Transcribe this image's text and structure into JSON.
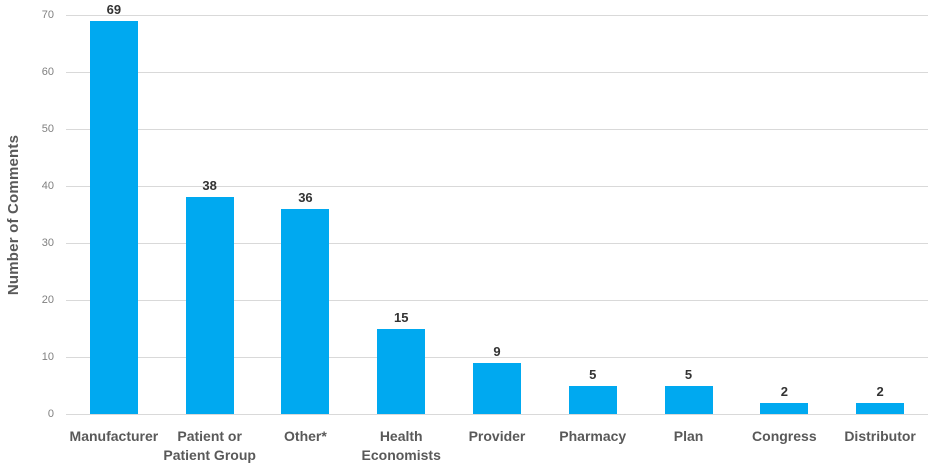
{
  "chart_data": {
    "type": "bar",
    "title": "",
    "xlabel": "",
    "ylabel": "Number of Comments",
    "categories": [
      "Manufacturer",
      "Patient or\nPatient Group",
      "Other*",
      "Health\nEconomists",
      "Provider",
      "Pharmacy",
      "Plan",
      "Congress",
      "Distributor"
    ],
    "values": [
      69,
      38,
      36,
      15,
      9,
      5,
      5,
      2,
      2
    ],
    "data_labels": [
      "69",
      "38",
      "36",
      "15",
      "9",
      "5",
      "5",
      "2",
      "2"
    ],
    "ylim": [
      0,
      70
    ],
    "ytick_step": 10,
    "ytick_labels": [
      "0",
      "10",
      "20",
      "30",
      "40",
      "50",
      "60",
      "70"
    ],
    "grid": true,
    "legend": false,
    "colors": {
      "bar": "#00A9F0",
      "gridline": "#D9D9D9",
      "tick_label": "#808080",
      "category_label": "#595959",
      "data_label": "#333333",
      "axis_title": "#595959",
      "background": "#FFFFFF"
    }
  }
}
